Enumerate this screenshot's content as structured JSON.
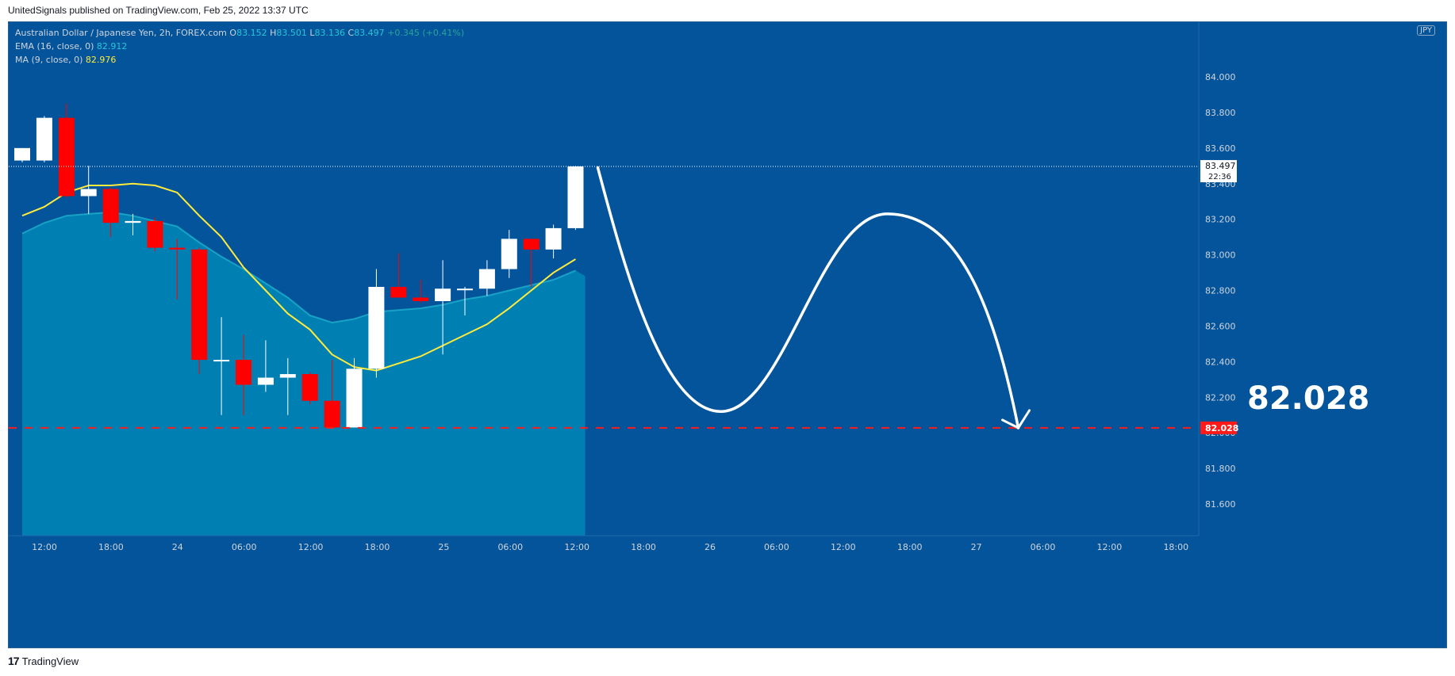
{
  "header": {
    "published": "UnitedSignals published on TradingView.com, Feb 25, 2022 13:37 UTC"
  },
  "legend": {
    "symbol": "Australian Dollar / Japanese Yen, 2h, FOREX.com",
    "o_label": "O",
    "o": "83.152",
    "h_label": "H",
    "h": "83.501",
    "l_label": "L",
    "l": "83.136",
    "c_label": "C",
    "c": "83.497",
    "change": "+0.345 (+0.41%)",
    "ema_label": "EMA (16, close, 0)",
    "ema_value": "82.912",
    "ma_label": "MA (9, close, 0)",
    "ma_value": "82.976"
  },
  "currency_badge": "JPY",
  "last_price": {
    "value": "83.497",
    "countdown": "22:36"
  },
  "target": {
    "value": "82.028",
    "label": "82.028"
  },
  "footer": {
    "brand": "TradingView",
    "logo": "17"
  },
  "colors": {
    "background": "#03549a",
    "up": "#ffffff",
    "down": "#ff0000",
    "ema_fill": "#0082b4",
    "ema_line": "#26c6da",
    "ma_line": "#ffeb3b",
    "target": "#ff1a1a"
  },
  "chart_data": {
    "type": "candlestick",
    "ylim": [
      81.4,
      84.2
    ],
    "y_ticks": [
      "81.600",
      "81.800",
      "82.000",
      "82.200",
      "82.400",
      "82.600",
      "82.800",
      "83.000",
      "83.200",
      "83.400",
      "83.600",
      "83.800",
      "84.000"
    ],
    "x_ticks": [
      "12:00",
      "18:00",
      "24",
      "06:00",
      "12:00",
      "18:00",
      "25",
      "06:00",
      "12:00",
      "18:00",
      "26",
      "06:00",
      "12:00",
      "18:00",
      "27",
      "06:00",
      "12:00",
      "18:00"
    ],
    "candles": [
      {
        "o": 83.53,
        "h": 83.6,
        "l": 83.52,
        "c": 83.6
      },
      {
        "o": 83.53,
        "h": 83.78,
        "l": 83.52,
        "c": 83.77
      },
      {
        "o": 83.77,
        "h": 83.85,
        "l": 83.32,
        "c": 83.33
      },
      {
        "o": 83.33,
        "h": 83.5,
        "l": 83.23,
        "c": 83.37
      },
      {
        "o": 83.37,
        "h": 83.38,
        "l": 83.1,
        "c": 83.18
      },
      {
        "o": 83.18,
        "h": 83.23,
        "l": 83.11,
        "c": 83.19
      },
      {
        "o": 83.19,
        "h": 83.21,
        "l": 83.02,
        "c": 83.04
      },
      {
        "o": 83.04,
        "h": 83.09,
        "l": 82.75,
        "c": 83.03
      },
      {
        "o": 83.03,
        "h": 83.04,
        "l": 82.33,
        "c": 82.41
      },
      {
        "o": 82.41,
        "h": 82.65,
        "l": 82.1,
        "c": 82.41
      },
      {
        "o": 82.41,
        "h": 82.55,
        "l": 82.1,
        "c": 82.27
      },
      {
        "o": 82.27,
        "h": 82.52,
        "l": 82.23,
        "c": 82.31
      },
      {
        "o": 82.31,
        "h": 82.42,
        "l": 82.1,
        "c": 82.33
      },
      {
        "o": 82.33,
        "h": 82.34,
        "l": 82.16,
        "c": 82.18
      },
      {
        "o": 82.18,
        "h": 82.41,
        "l": 82.03,
        "c": 82.03
      },
      {
        "o": 82.03,
        "h": 82.42,
        "l": 82.03,
        "c": 82.36
      },
      {
        "o": 82.36,
        "h": 82.92,
        "l": 82.31,
        "c": 82.82
      },
      {
        "o": 82.82,
        "h": 83.01,
        "l": 82.76,
        "c": 82.76
      },
      {
        "o": 82.76,
        "h": 82.86,
        "l": 82.73,
        "c": 82.74
      },
      {
        "o": 82.74,
        "h": 82.97,
        "l": 82.44,
        "c": 82.81
      },
      {
        "o": 82.81,
        "h": 82.82,
        "l": 82.66,
        "c": 82.81
      },
      {
        "o": 82.81,
        "h": 82.97,
        "l": 82.77,
        "c": 82.92
      },
      {
        "o": 82.92,
        "h": 83.14,
        "l": 82.87,
        "c": 83.09
      },
      {
        "o": 83.09,
        "h": 83.09,
        "l": 82.82,
        "c": 83.03
      },
      {
        "o": 83.03,
        "h": 83.17,
        "l": 82.98,
        "c": 83.15
      },
      {
        "o": 83.15,
        "h": 83.5,
        "l": 83.14,
        "c": 83.497
      }
    ],
    "ema": [
      83.12,
      83.18,
      83.22,
      83.23,
      83.24,
      83.22,
      83.19,
      83.16,
      83.07,
      82.99,
      82.92,
      82.84,
      82.76,
      82.66,
      82.62,
      82.64,
      82.68,
      82.69,
      82.7,
      82.72,
      82.75,
      82.77,
      82.8,
      82.83,
      82.86,
      82.912
    ],
    "ma": [
      83.22,
      83.27,
      83.35,
      83.39,
      83.39,
      83.4,
      83.39,
      83.35,
      83.22,
      83.1,
      82.93,
      82.8,
      82.67,
      82.58,
      82.44,
      82.37,
      82.35,
      82.39,
      82.43,
      82.49,
      82.55,
      82.61,
      82.7,
      82.8,
      82.9,
      82.976
    ],
    "projection": [
      83.49,
      82.12,
      83.23,
      82.028
    ]
  }
}
